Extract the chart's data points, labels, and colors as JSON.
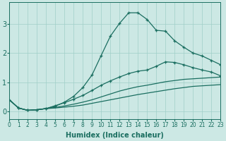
{
  "xlabel": "Humidex (Indice chaleur)",
  "ylabel": "",
  "background_color": "#cce8e4",
  "grid_color": "#a0cfc8",
  "line_color": "#1a6e60",
  "xlim": [
    0,
    23
  ],
  "ylim": [
    -0.25,
    3.75
  ],
  "xticks": [
    0,
    1,
    2,
    3,
    4,
    5,
    6,
    7,
    8,
    9,
    10,
    11,
    12,
    13,
    14,
    15,
    16,
    17,
    18,
    19,
    20,
    21,
    22,
    23
  ],
  "yticks": [
    0,
    1,
    2,
    3
  ],
  "curve_peak_x": [
    0,
    1,
    2,
    3,
    4,
    5,
    6,
    7,
    8,
    9,
    10,
    11,
    12,
    13,
    14,
    15,
    16,
    17,
    18,
    19,
    20,
    21,
    22,
    23
  ],
  "curve_peak_y": [
    0.4,
    0.12,
    0.04,
    0.06,
    0.1,
    0.18,
    0.32,
    0.52,
    0.82,
    1.25,
    1.92,
    2.58,
    3.02,
    3.38,
    3.38,
    3.15,
    2.78,
    2.75,
    2.42,
    2.2,
    2.0,
    1.9,
    1.75,
    1.6
  ],
  "curve_mid_x": [
    0,
    1,
    2,
    3,
    4,
    5,
    6,
    7,
    8,
    9,
    10,
    11,
    12,
    13,
    14,
    15,
    16,
    17,
    18,
    19,
    20,
    21,
    22,
    23
  ],
  "curve_mid_y": [
    0.4,
    0.12,
    0.04,
    0.06,
    0.1,
    0.2,
    0.3,
    0.42,
    0.55,
    0.72,
    0.9,
    1.05,
    1.18,
    1.3,
    1.38,
    1.42,
    1.55,
    1.7,
    1.68,
    1.6,
    1.5,
    1.42,
    1.35,
    1.22
  ],
  "curve_lo1_x": [
    0,
    1,
    2,
    3,
    4,
    5,
    6,
    7,
    8,
    9,
    10,
    11,
    12,
    13,
    14,
    15,
    16,
    17,
    18,
    19,
    20,
    21,
    22,
    23
  ],
  "curve_lo1_y": [
    0.4,
    0.12,
    0.04,
    0.06,
    0.1,
    0.14,
    0.19,
    0.25,
    0.32,
    0.4,
    0.5,
    0.6,
    0.7,
    0.78,
    0.85,
    0.9,
    0.96,
    1.02,
    1.06,
    1.1,
    1.12,
    1.14,
    1.16,
    1.18
  ],
  "curve_lo2_x": [
    0,
    1,
    2,
    3,
    4,
    5,
    6,
    7,
    8,
    9,
    10,
    11,
    12,
    13,
    14,
    15,
    16,
    17,
    18,
    19,
    20,
    21,
    22,
    23
  ],
  "curve_lo2_y": [
    0.4,
    0.12,
    0.04,
    0.06,
    0.1,
    0.12,
    0.15,
    0.18,
    0.22,
    0.28,
    0.34,
    0.4,
    0.46,
    0.52,
    0.58,
    0.63,
    0.68,
    0.73,
    0.78,
    0.82,
    0.86,
    0.88,
    0.9,
    0.92
  ]
}
